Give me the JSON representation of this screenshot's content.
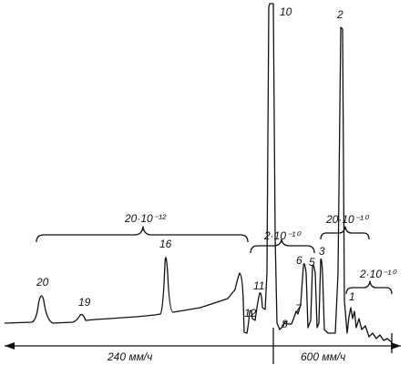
{
  "peaks": {
    "p10": "10",
    "p2": "2",
    "p20": "20",
    "p19": "19",
    "p16": "16",
    "p12": "12",
    "p11": "11",
    "p8": "8",
    "p7": "7",
    "p6": "6",
    "p5": "5",
    "p3": "3",
    "p1": "1"
  },
  "brackets": {
    "b1": "20·10⁻¹²",
    "b2": "2·10⁻¹⁰",
    "b3": "20·10⁻¹⁰",
    "b4": "2·10⁻¹⁰"
  },
  "speeds": {
    "left": "240 мм/ч",
    "right": "600 мм/ч"
  }
}
